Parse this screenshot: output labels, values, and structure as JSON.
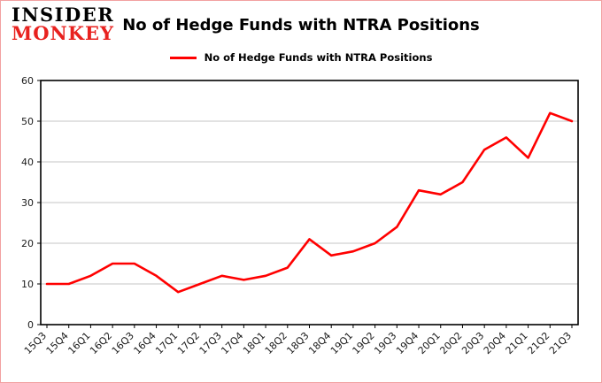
{
  "logo": {
    "line1": "INSIDER",
    "line2": "MONKEY"
  },
  "header": {
    "title": "No of Hedge Funds with NTRA Positions"
  },
  "legend": {
    "label": "No of Hedge Funds with NTRA Positions",
    "color": "#ff0000"
  },
  "chart_data": {
    "type": "line",
    "title": "No of Hedge Funds with NTRA Positions",
    "categories": [
      "15Q3",
      "15Q4",
      "16Q1",
      "16Q2",
      "16Q3",
      "16Q4",
      "17Q1",
      "17Q2",
      "17Q3",
      "17Q4",
      "18Q1",
      "18Q2",
      "18Q3",
      "18Q4",
      "19Q1",
      "19Q2",
      "19Q3",
      "19Q4",
      "20Q1",
      "20Q2",
      "20Q3",
      "20Q4",
      "21Q1",
      "21Q2",
      "21Q3"
    ],
    "values": [
      10,
      10,
      12,
      15,
      15,
      12,
      8,
      10,
      12,
      11,
      12,
      14,
      21,
      17,
      18,
      20,
      24,
      33,
      32,
      35,
      43,
      46,
      41,
      52,
      50
    ],
    "xlabel": "",
    "ylabel": "",
    "ylim": [
      0,
      60
    ],
    "yticks": [
      0,
      10,
      20,
      30,
      40,
      50,
      60
    ],
    "grid": true,
    "grid_color": "#c6c6c6",
    "legend_position": "top",
    "line_color": "#ff0000"
  }
}
